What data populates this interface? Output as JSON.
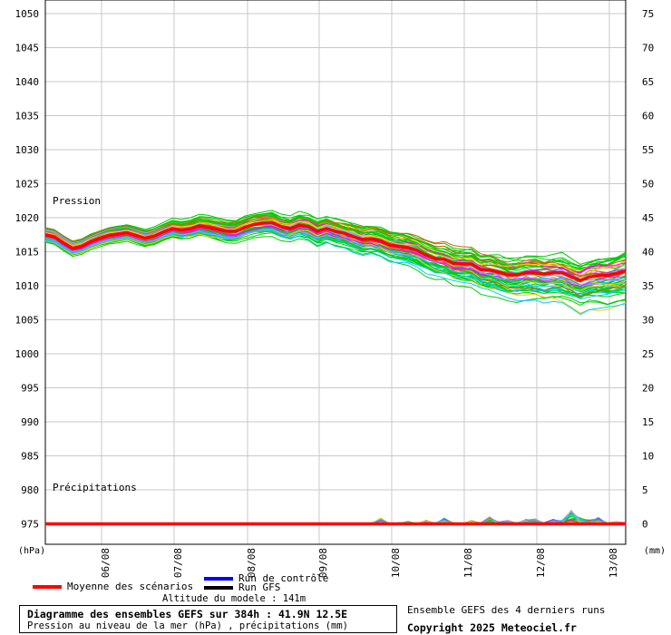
{
  "chart_data": {
    "type": "line",
    "left_axis": {
      "unit": "(hPa)",
      "ticks": [
        1050,
        1045,
        1040,
        1035,
        1030,
        1025,
        1020,
        1015,
        1010,
        1005,
        1000,
        995,
        990,
        985,
        980,
        975
      ],
      "range": [
        972,
        1052
      ]
    },
    "right_axis": {
      "unit": "(mm)",
      "ticks": [
        75,
        70,
        65,
        60,
        55,
        50,
        45,
        40,
        35,
        30,
        25,
        20,
        15,
        10,
        5,
        0
      ]
    },
    "x_axis": {
      "ticks": [
        "06/08",
        "07/08",
        "08/08",
        "09/08",
        "10/08",
        "11/08",
        "12/08",
        "13/08"
      ]
    },
    "sections": {
      "pressure": "Pression",
      "precip": "Précipitations"
    },
    "mean_pressure": [
      1017.5,
      1017.2,
      1016.3,
      1015.5,
      1015.8,
      1016.5,
      1017.0,
      1017.4,
      1017.6,
      1017.8,
      1017.4,
      1017.0,
      1017.3,
      1017.9,
      1018.4,
      1018.2,
      1018.4,
      1018.8,
      1018.6,
      1018.3,
      1018.0,
      1018.0,
      1018.6,
      1019.0,
      1019.2,
      1019.3,
      1018.7,
      1018.4,
      1018.9,
      1018.7,
      1018.0,
      1018.4,
      1018.0,
      1017.7,
      1017.2,
      1016.8,
      1016.9,
      1016.6,
      1016.0,
      1015.8,
      1015.6,
      1015.2,
      1014.5,
      1014.0,
      1013.9,
      1013.3,
      1013.2,
      1013.2,
      1012.4,
      1012.3,
      1012.0,
      1011.6,
      1011.6,
      1011.9,
      1011.9,
      1011.7,
      1011.9,
      1011.9,
      1011.3,
      1010.8,
      1011.3,
      1011.5,
      1011.5,
      1011.8,
      1012.2
    ],
    "precip_scatter_mm": [
      0,
      0,
      0,
      0,
      0,
      0,
      0,
      0,
      0,
      0,
      0,
      0,
      0,
      0,
      0,
      0,
      0,
      0,
      0,
      0,
      0,
      0,
      0,
      0,
      0,
      0,
      0,
      0,
      0,
      0,
      0.05,
      0.05,
      0,
      0,
      0,
      0.1,
      0.2,
      0.6,
      0.1,
      0.2,
      0.3,
      0.1,
      0.4,
      0.2,
      0.6,
      0.2,
      0.1,
      0.4,
      0.2,
      0.8,
      0.3,
      0.4,
      0.2,
      0.5,
      0.6,
      0.2,
      0.5,
      0.4,
      1.3,
      0.6,
      0.5,
      0.7,
      0.2,
      0.3,
      0.2
    ],
    "series": [
      {
        "name": "Moyenne des scénarios",
        "color": "#ff0000"
      },
      {
        "name": "Run de contrôle",
        "color": "#0000ff"
      },
      {
        "name": "Run GFS",
        "color": "#000000"
      }
    ],
    "ensemble_colors": [
      "#00cc00",
      "#ff00ff",
      "#ffcc00",
      "#00ccff",
      "#cc6600",
      "#9999ff"
    ]
  },
  "footer": {
    "altitude": "Altitude du modele : 141m",
    "title": "Diagramme des ensembles GEFS sur 384h : 41.9N 12.5E",
    "subtitle": "Pression au niveau de la mer (hPa) , précipitations (mm)",
    "runs_info": "Ensemble GEFS des 4 derniers runs",
    "copyright": "Copyright 2025 Meteociel.fr"
  }
}
